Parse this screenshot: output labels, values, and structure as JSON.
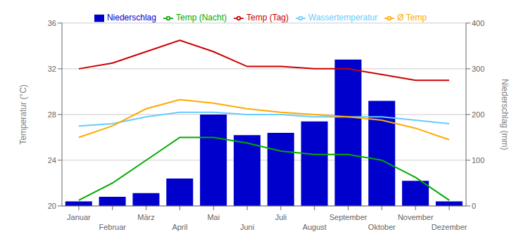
{
  "chart_data": {
    "type": "bar",
    "ylabel": "Temperatur (°C)",
    "y2label": "Niederschlag (mm)",
    "categories": [
      "Januar",
      "Februar",
      "März",
      "April",
      "Mai",
      "Juni",
      "Juli",
      "August",
      "September",
      "Oktober",
      "November",
      "Dezember"
    ],
    "series": [
      {
        "name": "Niederschlag",
        "type": "bar",
        "axis": "y2",
        "color": "#0000cc",
        "values": [
          10,
          20,
          28,
          60,
          200,
          155,
          160,
          185,
          320,
          230,
          55,
          10
        ]
      },
      {
        "name": "Wassertemperatur",
        "type": "line",
        "color": "#66ccff",
        "values": [
          27.0,
          27.2,
          27.8,
          28.2,
          28.2,
          28.0,
          28.0,
          27.8,
          27.8,
          27.8,
          27.5,
          27.2
        ]
      },
      {
        "name": "Temp (Tag)",
        "type": "line",
        "color": "#cc0000",
        "values": [
          32.0,
          32.5,
          33.5,
          34.5,
          33.5,
          32.2,
          32.2,
          32.0,
          32.0,
          31.5,
          31.0,
          31.0
        ]
      },
      {
        "name": "Ø Temp",
        "type": "line",
        "color": "#ffaa00",
        "values": [
          26.0,
          27.0,
          28.5,
          29.3,
          29.0,
          28.5,
          28.2,
          28.0,
          27.8,
          27.5,
          26.8,
          25.8
        ]
      },
      {
        "name": "Temp (Nacht)",
        "type": "line",
        "color": "#00aa00",
        "values": [
          20.5,
          22.0,
          24.0,
          26.0,
          26.0,
          25.5,
          24.8,
          24.5,
          24.5,
          24.0,
          22.5,
          20.5
        ]
      }
    ],
    "ylim": [
      20,
      36
    ],
    "yticks": [
      20,
      24,
      28,
      32,
      36
    ],
    "y2lim": [
      0,
      400
    ],
    "y2ticks": [
      0,
      100,
      200,
      300,
      400
    ],
    "grid": true,
    "legend": "top"
  }
}
